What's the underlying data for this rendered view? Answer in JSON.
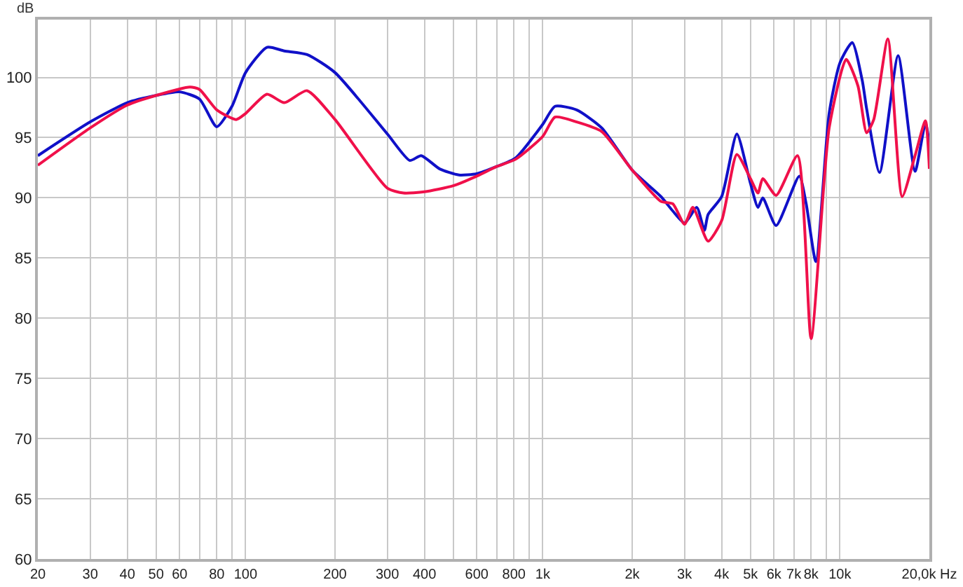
{
  "chart_data": {
    "type": "line",
    "ylabel": "dB",
    "log": "x",
    "grid": true,
    "marker": "none",
    "line_style": "solid",
    "xlim": [
      20,
      20000
    ],
    "xticks": [
      20,
      30,
      40,
      50,
      60,
      {
        "value": 70,
        "label": null
      },
      80,
      {
        "value": 90,
        "label": null
      },
      100,
      200,
      300,
      400,
      {
        "value": 500,
        "label": null
      },
      600,
      {
        "value": 700,
        "label": null
      },
      800,
      {
        "value": 900,
        "label": null
      },
      {
        "value": 1000,
        "label": "1k"
      },
      {
        "value": 2000,
        "label": "2k"
      },
      {
        "value": 3000,
        "label": "3k"
      },
      {
        "value": 4000,
        "label": "4k"
      },
      {
        "value": 5000,
        "label": "5k"
      },
      {
        "value": 6000,
        "label": "6k"
      },
      {
        "value": 7000,
        "label": "7k"
      },
      {
        "value": 8000,
        "label": "8k"
      },
      {
        "value": 9000,
        "label": null
      },
      {
        "value": 10000,
        "label": "10k"
      },
      {
        "value": 20000,
        "label": "20,0k Hz"
      }
    ],
    "ylim": [
      60,
      104.8
    ],
    "yticks": [
      60,
      65,
      70,
      75,
      80,
      85,
      90,
      95,
      100
    ],
    "series": [
      {
        "color": "#1010c8",
        "x": [
          20,
          30,
          40,
          50,
          60,
          70,
          80,
          90,
          100,
          118,
          135,
          161,
          200,
          300,
          357,
          390,
          450,
          522,
          600,
          700,
          810,
          1000,
          1100,
          1300,
          1580,
          2000,
          2500,
          2740,
          3000,
          3300,
          3500,
          3600,
          4000,
          4500,
          5000,
          5300,
          5500,
          6100,
          7300,
          7700,
          8300,
          9200,
          10000,
          11000,
          11900,
          12300,
          13600,
          15700,
          17900,
          19400,
          20000
        ],
        "values": [
          93.5,
          96.3,
          97.9,
          98.5,
          98.8,
          98.2,
          95.9,
          97.6,
          100.4,
          102.5,
          102.2,
          101.9,
          100.4,
          95.3,
          93.1,
          93.5,
          92.4,
          91.9,
          92.0,
          92.6,
          93.3,
          96.1,
          97.6,
          97.3,
          95.8,
          92.3,
          90.1,
          88.9,
          87.9,
          89.2,
          87.3,
          88.6,
          90.1,
          95.3,
          91.2,
          89.2,
          90.0,
          87.7,
          91.8,
          89.5,
          84.7,
          97.0,
          101.2,
          102.9,
          99.7,
          97.4,
          92.1,
          101.8,
          92.2,
          96.2,
          94.5
        ]
      },
      {
        "color": "#f0104a",
        "x": [
          20,
          30,
          40,
          50,
          65,
          70,
          80,
          93,
          100,
          118,
          135,
          161,
          200,
          300,
          340,
          400,
          500,
          600,
          700,
          810,
          1000,
          1100,
          1300,
          1580,
          2000,
          2500,
          2740,
          3000,
          3200,
          3600,
          4000,
          4500,
          5000,
          5300,
          5500,
          6100,
          7200,
          8000,
          9200,
          10500,
          11500,
          12300,
          13000,
          14500,
          16200,
          17900,
          19400,
          20000
        ],
        "values": [
          92.7,
          95.8,
          97.7,
          98.5,
          99.2,
          99.0,
          97.3,
          96.5,
          97.0,
          98.6,
          97.9,
          98.9,
          96.5,
          90.8,
          90.4,
          90.5,
          91.0,
          91.8,
          92.6,
          93.2,
          95.1,
          96.7,
          96.3,
          95.5,
          92.3,
          89.7,
          89.5,
          87.8,
          89.2,
          86.4,
          88.1,
          93.6,
          91.6,
          90.4,
          91.6,
          90.2,
          93.5,
          78.3,
          95.8,
          101.5,
          99.3,
          95.4,
          96.5,
          103.2,
          90.1,
          93.5,
          96.4,
          92.4
        ]
      }
    ]
  }
}
